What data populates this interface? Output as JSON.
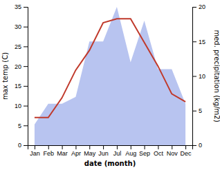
{
  "chart_data": {
    "type": "line",
    "xlabel": "date (month)",
    "ylabel": "max temp (C)",
    "y2label": "med. precipitation (kg/m2)",
    "categories": [
      "Jan",
      "Feb",
      "Mar",
      "Apr",
      "May",
      "Jun",
      "Jul",
      "Aug",
      "Sep",
      "Oct",
      "Nov",
      "Dec"
    ],
    "series": [
      {
        "type": "area",
        "axis": "y2",
        "color": "#b8c4f0",
        "values": [
          3,
          6,
          6,
          7,
          15,
          15,
          20,
          12,
          18,
          11,
          11,
          6
        ]
      },
      {
        "type": "line",
        "color": "#c0392b",
        "values": [
          7,
          7,
          12,
          19,
          24,
          31,
          32,
          32,
          26,
          20,
          13,
          11
        ]
      }
    ],
    "ylim": [
      0,
      35
    ],
    "yticks": [
      0,
      5,
      10,
      15,
      20,
      25,
      30,
      35
    ],
    "y2lim": [
      0,
      20
    ],
    "y2ticks": [
      0,
      5,
      10,
      15,
      20
    ],
    "grid": false
  }
}
